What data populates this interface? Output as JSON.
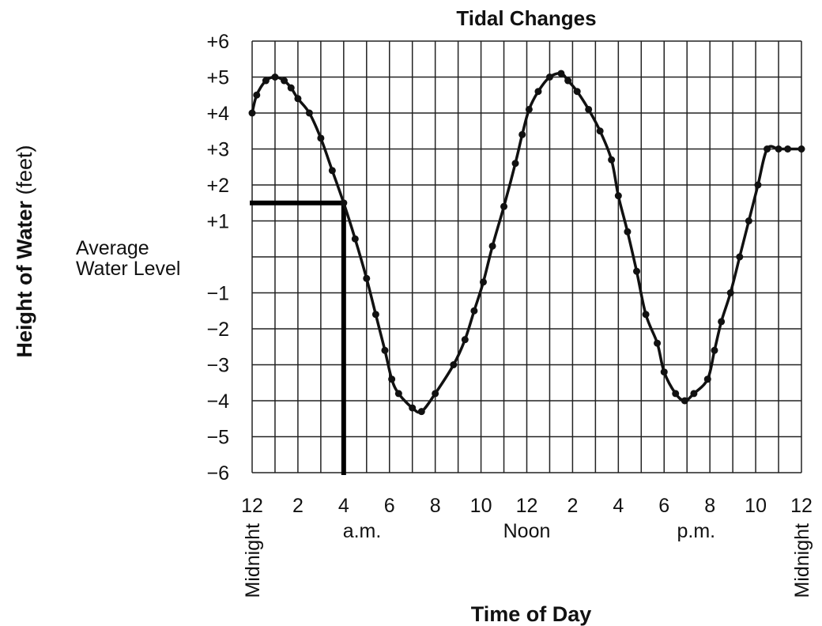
{
  "chart_data": {
    "type": "line",
    "title": "Tidal Changes",
    "xlabel": "Time of Day",
    "ylabel_main": "Height of Water",
    "ylabel_unit": "(feet)",
    "xlim": [
      0,
      24
    ],
    "ylim": [
      -6,
      6
    ],
    "grid": true,
    "x_tick_labels": [
      "12",
      "2",
      "4",
      "6",
      "8",
      "10",
      "12",
      "2",
      "4",
      "6",
      "8",
      "10",
      "12"
    ],
    "x_sublabels": [
      "Midnight",
      "a.m.",
      "Noon",
      "p.m.",
      "Midnight"
    ],
    "y_tick_labels": [
      "+6",
      "+5",
      "+4",
      "+3",
      "+2",
      "+1",
      "",
      "−1",
      "−2",
      "−3",
      "−4",
      "−5",
      "−6"
    ],
    "zero_line_label": [
      "Average",
      "Water Level"
    ],
    "series": [
      {
        "x": [
          0,
          0.2,
          0.6,
          1.0,
          1.4,
          1.7,
          2.0,
          2.5,
          3.0,
          3.5,
          4.0,
          4.5,
          5.0,
          5.4,
          5.8,
          6.1,
          6.4,
          7.0,
          7.4,
          8.0,
          8.8,
          9.3,
          9.7,
          10.1,
          10.5,
          11.0,
          11.5,
          11.8,
          12.1,
          12.5,
          13.0,
          13.5,
          13.8,
          14.2,
          14.7,
          15.2,
          15.7,
          16.0,
          16.4,
          16.8,
          17.2,
          17.7,
          18.0,
          18.5,
          18.9,
          19.3,
          19.9,
          20.2,
          20.5,
          20.9,
          21.3,
          21.7,
          22.1,
          22.5,
          23.0,
          23.4,
          24.0
        ],
        "y": [
          4.0,
          4.5,
          4.9,
          5.0,
          4.9,
          4.7,
          4.4,
          4.0,
          3.3,
          2.4,
          1.5,
          0.5,
          -0.6,
          -1.6,
          -2.6,
          -3.4,
          -3.8,
          -4.2,
          -4.3,
          -3.8,
          -3.0,
          -2.3,
          -1.5,
          -0.7,
          0.3,
          1.4,
          2.6,
          3.4,
          4.1,
          4.6,
          5.0,
          5.1,
          4.9,
          4.6,
          4.1,
          3.5,
          2.7,
          1.7,
          0.7,
          -0.4,
          -1.6,
          -2.4,
          -3.2,
          -3.8,
          -4.0,
          -3.8,
          -3.4,
          -2.6,
          -1.8,
          -1.0,
          0.0,
          1.0,
          2.0,
          3.0,
          3.0,
          3.0,
          3.0
        ]
      }
    ],
    "reference_point": {
      "x": 4,
      "y": 1.5
    }
  }
}
